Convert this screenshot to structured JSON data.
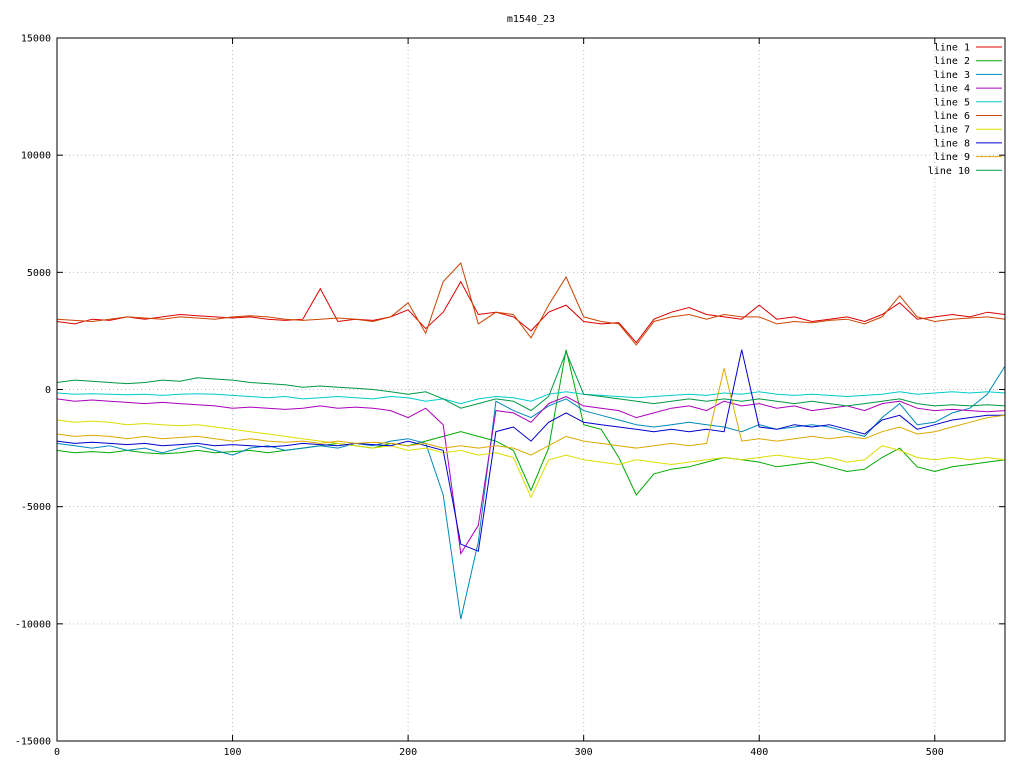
{
  "chart_data": {
    "type": "line",
    "title": "m1540_23",
    "xlabel": "",
    "ylabel": "",
    "xlim": [
      0,
      540
    ],
    "ylim": [
      -15000,
      15000
    ],
    "x_ticks": [
      0,
      100,
      200,
      300,
      400,
      500
    ],
    "y_ticks": [
      -15000,
      -10000,
      -5000,
      0,
      5000,
      10000,
      15000
    ],
    "grid": true,
    "grid_style": "dotted",
    "legend_position": "top-right",
    "border_color": "#000000",
    "grid_color": "#bbbbbb",
    "x": [
      0,
      10,
      20,
      30,
      40,
      50,
      60,
      70,
      80,
      90,
      100,
      110,
      120,
      130,
      140,
      150,
      160,
      170,
      180,
      190,
      200,
      210,
      220,
      230,
      240,
      250,
      260,
      270,
      280,
      290,
      300,
      310,
      320,
      330,
      340,
      350,
      360,
      370,
      380,
      390,
      400,
      410,
      420,
      430,
      440,
      450,
      460,
      470,
      480,
      490,
      500,
      510,
      520,
      530,
      540
    ],
    "series": [
      {
        "name": "line 1",
        "color": "#dd0000",
        "values": [
          2900,
          2800,
          3000,
          2950,
          3100,
          3000,
          3100,
          3200,
          3150,
          3100,
          3050,
          3100,
          3000,
          2950,
          3000,
          4300,
          2900,
          3000,
          2950,
          3100,
          3400,
          2600,
          3300,
          4600,
          3200,
          3300,
          3100,
          2500,
          3300,
          3600,
          2900,
          2800,
          2850,
          2000,
          3000,
          3300,
          3500,
          3200,
          3100,
          3000,
          3600,
          3000,
          3100,
          2900,
          3000,
          3100,
          2900,
          3200,
          3700,
          3000,
          3100,
          3200,
          3100,
          3300,
          3200
        ]
      },
      {
        "name": "line 2",
        "color": "#00aa00",
        "values": [
          -2600,
          -2700,
          -2650,
          -2700,
          -2600,
          -2700,
          -2750,
          -2700,
          -2600,
          -2700,
          -2650,
          -2600,
          -2700,
          -2600,
          -2500,
          -2400,
          -2300,
          -2400,
          -2500,
          -2300,
          -2400,
          -2200,
          -2000,
          -1800,
          -2000,
          -2200,
          -2600,
          -4300,
          -2500,
          1700,
          -1500,
          -1700,
          -2900,
          -4500,
          -3600,
          -3400,
          -3300,
          -3100,
          -2900,
          -3000,
          -3100,
          -3300,
          -3200,
          -3100,
          -3300,
          -3500,
          -3400,
          -2900,
          -2500,
          -3300,
          -3500,
          -3300,
          -3200,
          -3100,
          -3000
        ]
      },
      {
        "name": "line 3",
        "color": "#0088bb",
        "values": [
          -2300,
          -2400,
          -2500,
          -2400,
          -2600,
          -2500,
          -2700,
          -2500,
          -2400,
          -2600,
          -2800,
          -2500,
          -2400,
          -2600,
          -2500,
          -2400,
          -2500,
          -2300,
          -2400,
          -2200,
          -2100,
          -2300,
          -4500,
          -9800,
          -6500,
          -500,
          -900,
          -1200,
          -700,
          -400,
          -900,
          -1100,
          -1300,
          -1500,
          -1600,
          -1500,
          -1400,
          -1500,
          -1600,
          -1800,
          -1500,
          -1700,
          -1600,
          -1500,
          -1600,
          -1800,
          -2000,
          -1200,
          -600,
          -1500,
          -1400,
          -1000,
          -800,
          -200,
          1000
        ]
      },
      {
        "name": "line 4",
        "color": "#aa00bb",
        "values": [
          -400,
          -500,
          -450,
          -500,
          -550,
          -600,
          -550,
          -600,
          -650,
          -700,
          -800,
          -750,
          -800,
          -850,
          -800,
          -700,
          -800,
          -750,
          -800,
          -900,
          -1200,
          -800,
          -1500,
          -7000,
          -5800,
          -900,
          -1000,
          -1400,
          -600,
          -300,
          -700,
          -800,
          -900,
          -1200,
          -1000,
          -800,
          -700,
          -900,
          -500,
          -700,
          -600,
          -800,
          -700,
          -900,
          -800,
          -700,
          -900,
          -600,
          -500,
          -800,
          -900,
          -850,
          -900,
          -950,
          -900
        ]
      },
      {
        "name": "line 5",
        "color": "#00cccc",
        "values": [
          -150,
          -200,
          -180,
          -200,
          -220,
          -200,
          -250,
          -200,
          -180,
          -200,
          -250,
          -300,
          -350,
          -300,
          -400,
          -350,
          -300,
          -350,
          -400,
          -300,
          -350,
          -500,
          -400,
          -600,
          -400,
          -300,
          -350,
          -500,
          -200,
          -100,
          -200,
          -250,
          -300,
          -350,
          -300,
          -250,
          -200,
          -250,
          -150,
          -200,
          -100,
          -200,
          -250,
          -200,
          -250,
          -300,
          -250,
          -200,
          -100,
          -200,
          -150,
          -100,
          -150,
          -100,
          -150
        ]
      },
      {
        "name": "line 6",
        "color": "#cc4400",
        "values": [
          3000,
          2950,
          2900,
          3000,
          3100,
          3050,
          3000,
          3100,
          3050,
          3000,
          3100,
          3150,
          3100,
          3000,
          2950,
          3000,
          3050,
          3000,
          2900,
          3100,
          3700,
          2400,
          4600,
          5400,
          2800,
          3300,
          3200,
          2200,
          3600,
          4800,
          3100,
          2900,
          2800,
          1900,
          2900,
          3100,
          3200,
          3000,
          3200,
          3100,
          3100,
          2800,
          2900,
          2850,
          2950,
          3000,
          2800,
          3100,
          4000,
          3100,
          2900,
          3000,
          3050,
          3100,
          3000
        ]
      },
      {
        "name": "line 7",
        "color": "#dddd00",
        "values": [
          -1300,
          -1400,
          -1350,
          -1400,
          -1500,
          -1450,
          -1500,
          -1550,
          -1500,
          -1600,
          -1700,
          -1800,
          -1900,
          -2000,
          -2100,
          -2200,
          -2300,
          -2400,
          -2500,
          -2400,
          -2600,
          -2500,
          -2700,
          -2600,
          -2800,
          -2700,
          -2900,
          -4600,
          -3000,
          -2800,
          -3000,
          -3100,
          -3200,
          -3000,
          -3100,
          -3200,
          -3100,
          -3000,
          -2900,
          -3000,
          -2900,
          -2800,
          -2900,
          -3000,
          -2900,
          -3100,
          -3000,
          -2400,
          -2600,
          -2900,
          -3000,
          -2900,
          -3000,
          -2900,
          -3000
        ]
      },
      {
        "name": "line 8",
        "color": "#0000cc",
        "values": [
          -2200,
          -2300,
          -2250,
          -2300,
          -2350,
          -2300,
          -2400,
          -2350,
          -2300,
          -2400,
          -2350,
          -2400,
          -2450,
          -2400,
          -2300,
          -2350,
          -2400,
          -2300,
          -2350,
          -2400,
          -2200,
          -2400,
          -2600,
          -6600,
          -6900,
          -1800,
          -1600,
          -2200,
          -1400,
          -1000,
          -1400,
          -1500,
          -1600,
          -1700,
          -1800,
          -1700,
          -1800,
          -1700,
          -1800,
          1700,
          -1600,
          -1700,
          -1500,
          -1600,
          -1500,
          -1700,
          -1900,
          -1300,
          -1100,
          -1700,
          -1500,
          -1300,
          -1200,
          -1100,
          -1100
        ]
      },
      {
        "name": "line 9",
        "color": "#ddaa00",
        "values": [
          -1900,
          -2000,
          -1950,
          -2000,
          -2100,
          -2000,
          -2100,
          -2050,
          -2000,
          -2100,
          -2200,
          -2100,
          -2200,
          -2250,
          -2200,
          -2300,
          -2200,
          -2300,
          -2250,
          -2300,
          -2400,
          -2300,
          -2500,
          -2400,
          -2500,
          -2400,
          -2500,
          -2800,
          -2400,
          -2000,
          -2200,
          -2300,
          -2400,
          -2500,
          -2400,
          -2300,
          -2400,
          -2300,
          900,
          -2200,
          -2100,
          -2200,
          -2100,
          -2000,
          -2100,
          -2000,
          -2100,
          -1800,
          -1600,
          -1900,
          -1800,
          -1600,
          -1400,
          -1200,
          -1100
        ]
      },
      {
        "name": "line 10",
        "color": "#009944",
        "values": [
          300,
          400,
          350,
          300,
          250,
          300,
          400,
          350,
          500,
          450,
          400,
          300,
          250,
          200,
          100,
          150,
          100,
          50,
          0,
          -100,
          -200,
          -100,
          -400,
          -800,
          -600,
          -400,
          -500,
          -900,
          -300,
          1600,
          -200,
          -300,
          -400,
          -500,
          -600,
          -500,
          -400,
          -500,
          -400,
          -500,
          -400,
          -500,
          -600,
          -500,
          -600,
          -700,
          -600,
          -500,
          -400,
          -600,
          -700,
          -650,
          -700,
          -650,
          -700
        ]
      }
    ]
  }
}
